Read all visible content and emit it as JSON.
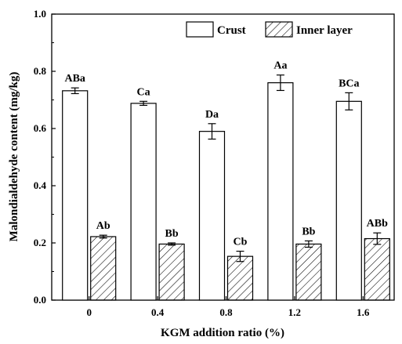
{
  "chart_data": {
    "type": "bar",
    "xlabel": "KGM addition ratio (%)",
    "ylabel": "Malondialdehyde content (mg/kg)",
    "ylim": [
      0,
      1.0
    ],
    "yticks": [
      "0.0",
      "0.2",
      "0.4",
      "0.6",
      "0.8",
      "1.0"
    ],
    "categories": [
      "0",
      "0.4",
      "0.8",
      "1.2",
      "1.6"
    ],
    "legend_position": "top-right",
    "series": [
      {
        "name": "Crust",
        "pattern": "open",
        "values": [
          0.732,
          0.688,
          0.59,
          0.76,
          0.695
        ],
        "errors": [
          0.01,
          0.007,
          0.027,
          0.027,
          0.03
        ],
        "labels": [
          "ABa",
          "Ca",
          "Da",
          "Aa",
          "BCa"
        ]
      },
      {
        "name": "Inner layer",
        "pattern": "hatched",
        "values": [
          0.222,
          0.196,
          0.153,
          0.196,
          0.215
        ],
        "errors": [
          0.005,
          0.004,
          0.018,
          0.011,
          0.02
        ],
        "labels": [
          "Ab",
          "Bb",
          "Cb",
          "Bb",
          "ABb"
        ]
      }
    ]
  }
}
